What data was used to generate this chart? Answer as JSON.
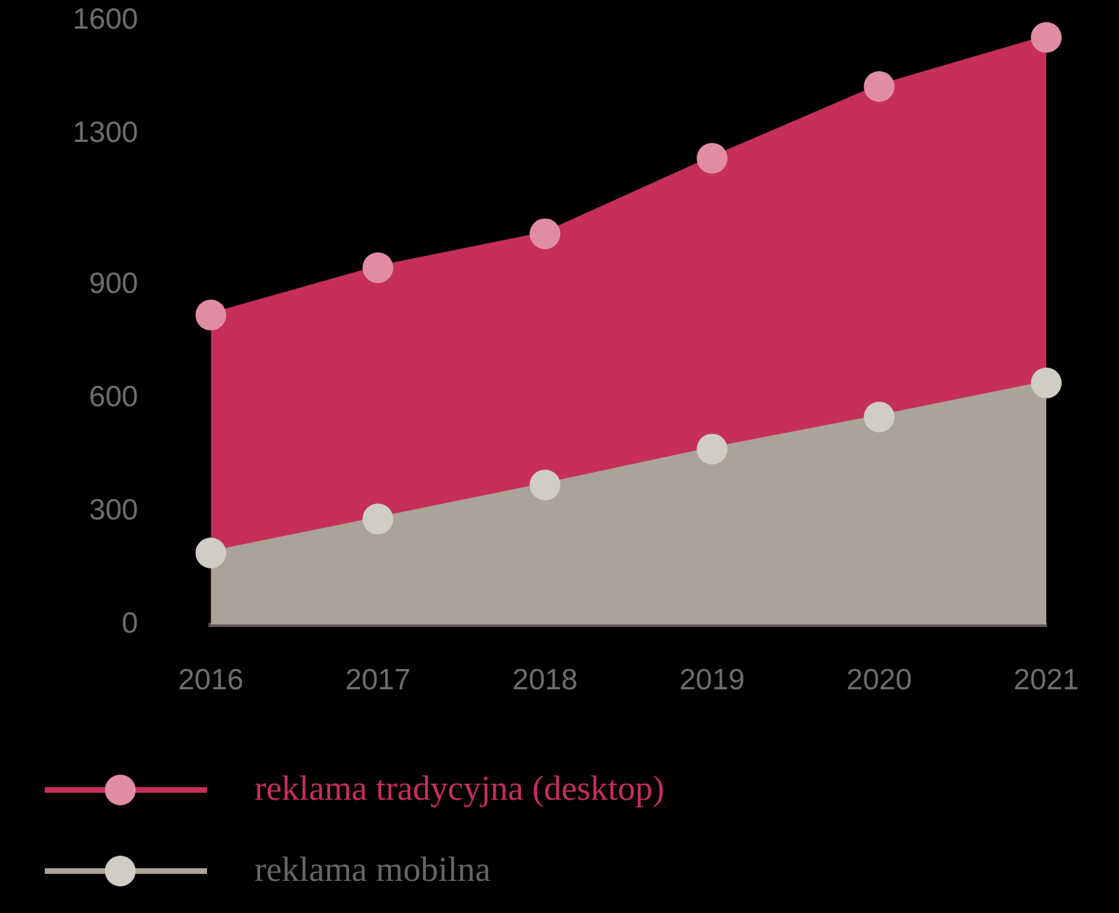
{
  "chart_data": {
    "type": "area",
    "categories": [
      "2016",
      "2017",
      "2018",
      "2019",
      "2020",
      "2021"
    ],
    "series": [
      {
        "name": "reklama tradycyjna (desktop)",
        "color": "#c62f5a",
        "values": [
          820,
          945,
          1035,
          1235,
          1425,
          1555
        ]
      },
      {
        "name": "reklama mobilna",
        "color": "#aaa398",
        "values": [
          190,
          280,
          370,
          465,
          550,
          640
        ]
      }
    ],
    "ylim": [
      0,
      1600
    ],
    "yticks": [
      0,
      300,
      600,
      900,
      1300,
      1600
    ],
    "grid": false,
    "legend": "bottom left",
    "marker": "circle"
  }
}
